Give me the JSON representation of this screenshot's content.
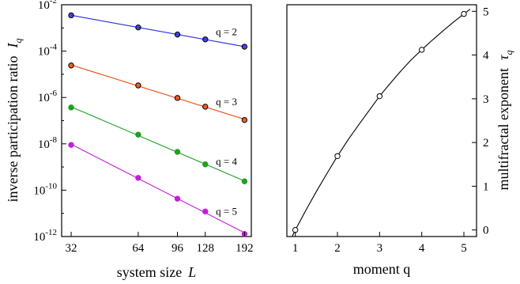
{
  "chart_data": [
    {
      "type": "scatter",
      "xlabel": "system size",
      "xlabel_symbol": "L",
      "ylabel": "inverse participation ratio",
      "ylabel_symbol": "I",
      "ylabel_subscript": "q",
      "x_scale": "log",
      "y_scale": "log",
      "xlim": [
        29,
        206
      ],
      "ylim": [
        1e-12,
        0.01
      ],
      "x_ticks": [
        32,
        64,
        96,
        128,
        192
      ],
      "x_tick_labels": [
        "32",
        "64",
        "96",
        "128",
        "192"
      ],
      "y_ticks": [
        0.01,
        0.0001,
        1e-06,
        1e-08,
        1e-10,
        1e-12
      ],
      "y_tick_labels": [
        {
          "base": "10",
          "exp": "-2"
        },
        {
          "base": "10",
          "exp": "-4"
        },
        {
          "base": "10",
          "exp": "-6"
        },
        {
          "base": "10",
          "exp": "-8"
        },
        {
          "base": "10",
          "exp": "-10"
        },
        {
          "base": "10",
          "exp": "-12"
        }
      ],
      "x": [
        32,
        64,
        96,
        128,
        192
      ],
      "series": [
        {
          "name": "q = 2",
          "color": "#2a2ae0",
          "marker": "open",
          "values": [
            0.0035,
            0.00105,
            0.00052,
            0.00032,
            0.000155
          ]
        },
        {
          "name": "q = 3",
          "color": "#ef4a0c",
          "marker": "open",
          "values": [
            2.4e-05,
            3.3e-06,
            9.5e-07,
            4e-07,
            1.07e-07
          ]
        },
        {
          "name": "q = 4",
          "color": "#1fa01f",
          "marker": "filled",
          "values": [
            3.7e-07,
            2.5e-08,
            4.5e-09,
            1.3e-09,
            2.4e-10
          ]
        },
        {
          "name": "q = 5",
          "color": "#c21fd8",
          "marker": "filled",
          "values": [
            9e-09,
            3.4e-10,
            4.3e-11,
            1.2e-11,
            1.3e-12
          ]
        }
      ],
      "grid": false
    },
    {
      "type": "line",
      "xlabel": "moment q",
      "ylabel": "multifractal exponent",
      "ylabel_symbol": "τ",
      "ylabel_subscript": "q",
      "xlim": [
        0.8,
        5.3
      ],
      "ylim": [
        -0.15,
        5.15
      ],
      "x_ticks": [
        1,
        2,
        3,
        4,
        5
      ],
      "y_ticks": [
        0,
        1,
        2,
        3,
        4,
        5
      ],
      "y_axis_side": "right",
      "points": {
        "x": [
          1,
          2,
          3,
          4,
          5
        ],
        "y": [
          0,
          1.69,
          3.06,
          4.12,
          4.94
        ]
      },
      "curve": {
        "x": [
          0.8,
          1.0,
          1.25,
          1.5,
          1.75,
          2.0,
          2.25,
          2.5,
          2.75,
          3.0,
          3.25,
          3.5,
          3.75,
          4.0,
          4.25,
          4.5,
          4.75,
          5.0,
          5.15
        ],
        "y": [
          -0.4,
          0.0,
          0.45,
          0.88,
          1.29,
          1.69,
          2.06,
          2.4,
          2.73,
          3.06,
          3.35,
          3.63,
          3.89,
          4.12,
          4.34,
          4.55,
          4.75,
          4.94,
          5.05
        ]
      },
      "color": "#000000",
      "grid": false
    }
  ]
}
